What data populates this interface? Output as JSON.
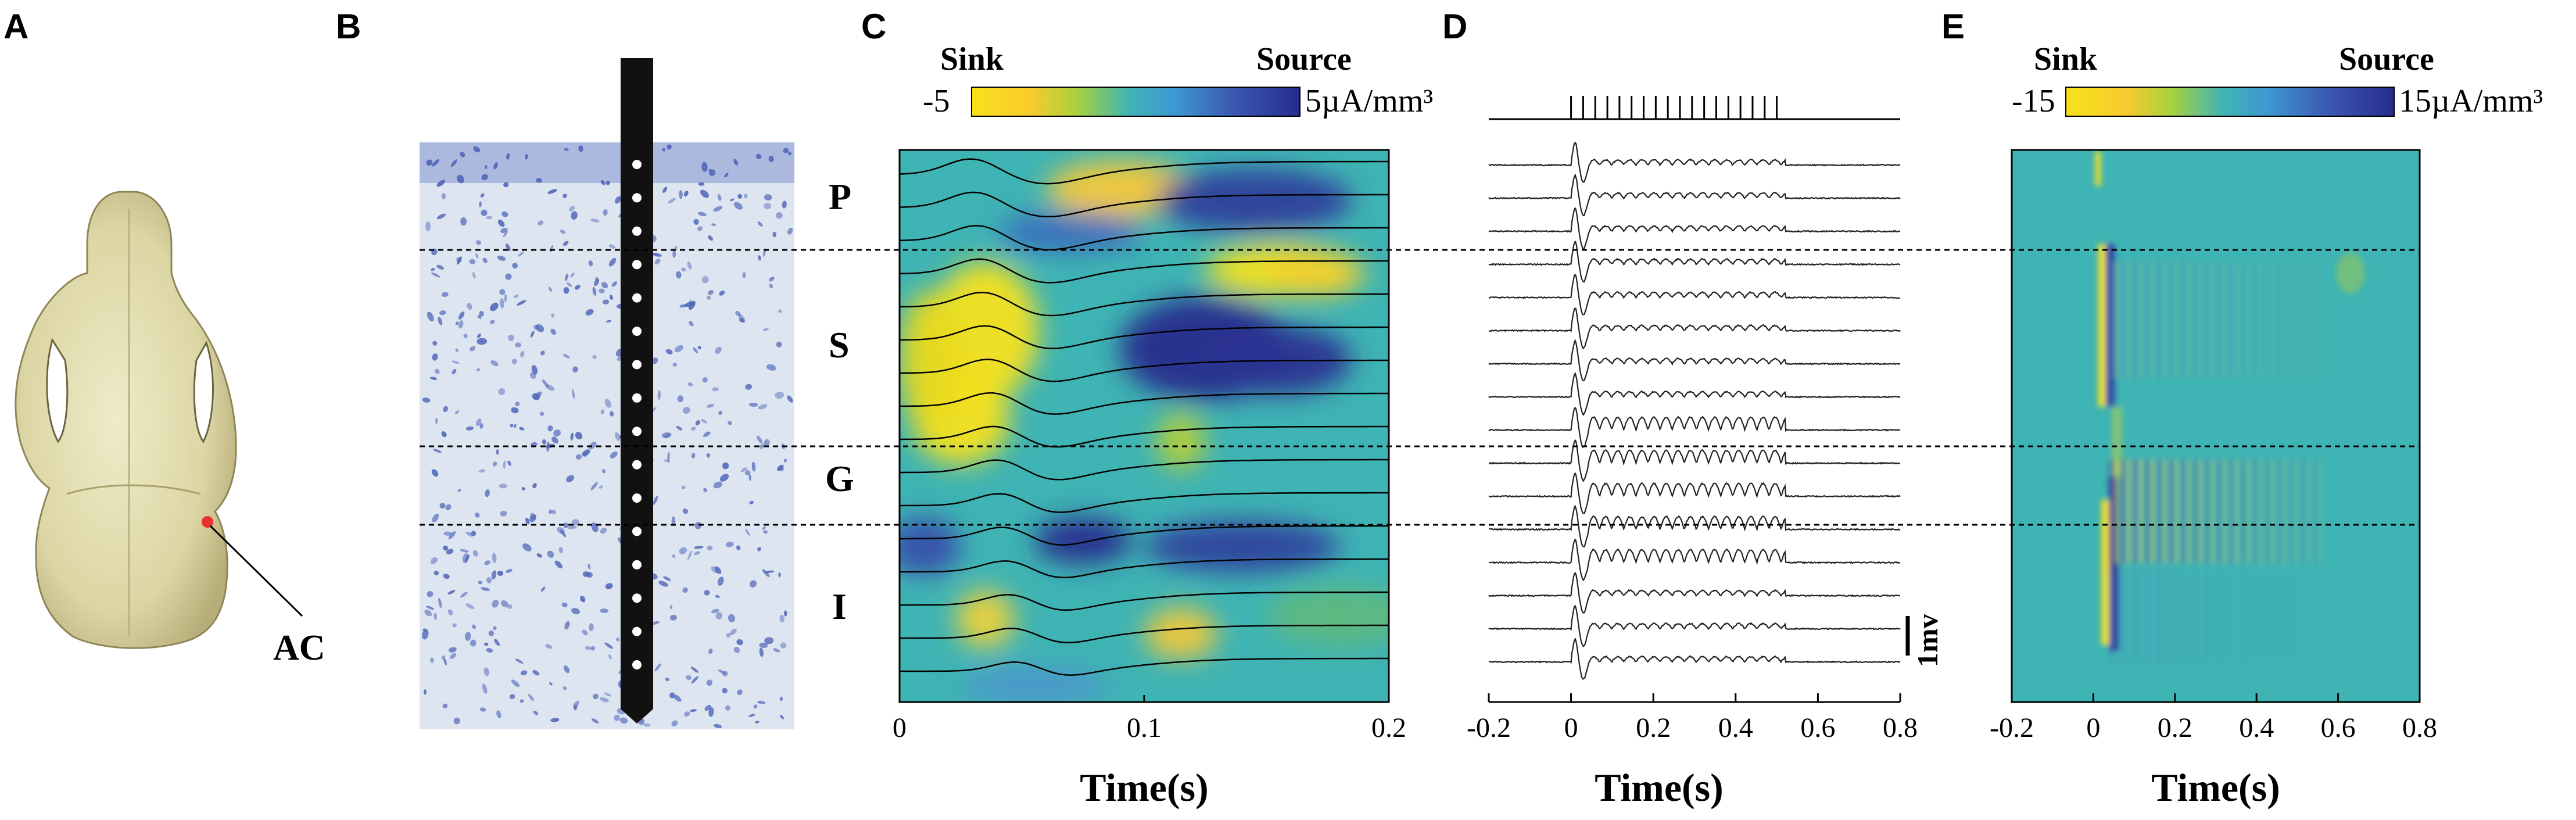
{
  "panels": {
    "a": {
      "label": "A",
      "annotation": "AC",
      "marker_color": "#e8322e"
    },
    "b": {
      "label": "B"
    },
    "c": {
      "label": "C",
      "colorbar": {
        "left_title": "Sink",
        "right_title": "Source",
        "min_label": "-5",
        "max_label": "5µA/mm³"
      },
      "layers": [
        "P",
        "S",
        "G",
        "I"
      ],
      "x_ticks": [
        "0",
        "0.1",
        "0.2"
      ],
      "x_label": "Time(s)"
    },
    "d": {
      "label": "D",
      "scale_label": "1mv",
      "x_ticks": [
        "-0.2",
        "0",
        "0.2",
        "0.4",
        "0.6",
        "0.8"
      ],
      "x_label": "Time(s)"
    },
    "e": {
      "label": "E",
      "colorbar": {
        "left_title": "Sink",
        "right_title": "Source",
        "min_label": "-15",
        "max_label": "15µA/mm³"
      },
      "x_ticks": [
        "-0.2",
        "0",
        "0.2",
        "0.4",
        "0.6",
        "0.8"
      ],
      "x_label": "Time(s)"
    }
  },
  "chart_data": [
    {
      "type": "heatmap",
      "panel": "C",
      "title": "",
      "xlabel": "Time(s)",
      "ylabel": "",
      "xlim": [
        0,
        0.2
      ],
      "x_ticks": [
        0,
        0.1,
        0.2
      ],
      "colorbar_range": [
        -5,
        5
      ],
      "colorbar_unit": "µA/mm³",
      "layers": [
        "P",
        "S",
        "G",
        "I"
      ],
      "channels": 16,
      "overlay": "16 field potential traces"
    },
    {
      "type": "line",
      "panel": "D",
      "title": "",
      "xlabel": "Time(s)",
      "ylabel": "",
      "xlim": [
        -0.2,
        0.8
      ],
      "x_ticks": [
        -0.2,
        0,
        0.2,
        0.4,
        0.6,
        0.8
      ],
      "channels": 16,
      "stimulus_train": {
        "pulses": 18,
        "start": 0.0,
        "end": 0.5
      },
      "scale_bar": "1mv"
    },
    {
      "type": "heatmap",
      "panel": "E",
      "title": "",
      "xlabel": "Time(s)",
      "ylabel": "",
      "xlim": [
        -0.2,
        0.8
      ],
      "x_ticks": [
        -0.2,
        0,
        0.2,
        0.4,
        0.6,
        0.8
      ],
      "colorbar_range": [
        -15,
        15
      ],
      "colorbar_unit": "µA/mm³",
      "channels": 16
    }
  ],
  "colors": {
    "sink": "#f7e21a",
    "neutral": "#3fb4b4",
    "source": "#262c8c",
    "trace": "#222222",
    "stain": "#5066b8"
  }
}
